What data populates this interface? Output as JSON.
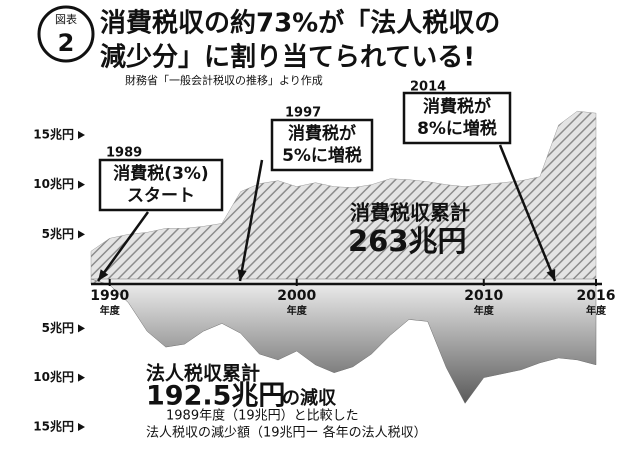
{
  "badge": {
    "label": "図表",
    "number": "2"
  },
  "chart_data": {
    "type": "mirror-area",
    "title_lines": [
      "消費税収の約73%が「法人税収の",
      "減少分」に割り当てられている!"
    ],
    "source": "財務省「一般会計税収の推移」より作成",
    "x": [
      1989,
      1990,
      1991,
      1992,
      1993,
      1994,
      1995,
      1996,
      1997,
      1998,
      1999,
      2000,
      2001,
      2002,
      2003,
      2004,
      2005,
      2006,
      2007,
      2008,
      2009,
      2010,
      2011,
      2012,
      2013,
      2014,
      2015,
      2016
    ],
    "xlim": [
      1989,
      2016
    ],
    "xticks": [
      1990,
      2000,
      2010,
      2016
    ],
    "xtick_unit": "年度",
    "ylim": [
      0,
      15
    ],
    "yticks": [
      {
        "value": 5,
        "label": "5兆円"
      },
      {
        "value": 10,
        "label": "10兆円"
      },
      {
        "value": 15,
        "label": "15兆円"
      }
    ],
    "y2lim": [
      0,
      15
    ],
    "y2ticks": [
      {
        "value": 5,
        "label": "5兆円"
      },
      {
        "value": 10,
        "label": "10兆円"
      },
      {
        "value": 15,
        "label": "15兆円"
      }
    ],
    "series": [
      {
        "name": "消費税収累計",
        "total_label": "263兆円",
        "color": "#9a9a9a",
        "axis": "y",
        "values": [
          3.3,
          4.6,
          5.0,
          5.2,
          5.6,
          5.6,
          5.8,
          6.1,
          9.3,
          10.1,
          10.4,
          9.8,
          10.2,
          9.8,
          9.7,
          10.0,
          10.6,
          10.5,
          10.3,
          10.0,
          9.8,
          10.0,
          10.2,
          10.4,
          10.8,
          16.0,
          17.4,
          17.2
        ]
      },
      {
        "name": "法人税収累計",
        "total_label": "192.5兆円",
        "total_suffix": "の減収",
        "notes": [
          "1989年度（19兆円）と比較した",
          "法人税収の減少額（19兆円ー 各年の法人税収）"
        ],
        "color": "#6e6e6e",
        "axis": "y2",
        "values": [
          0,
          0.6,
          2.4,
          5.3,
          6.9,
          6.6,
          5.3,
          4.5,
          5.5,
          7.6,
          8.2,
          7.3,
          8.7,
          9.5,
          8.9,
          7.6,
          5.7,
          4.1,
          4.3,
          9.0,
          12.6,
          10.0,
          9.6,
          9.2,
          8.5,
          8.0,
          8.2,
          8.7
        ]
      }
    ],
    "annotations": [
      {
        "year": "1989",
        "lines": [
          "消費税(3%)",
          "スタート"
        ]
      },
      {
        "year": "1997",
        "lines": [
          "消費税が",
          "5%に増税"
        ]
      },
      {
        "year": "2014",
        "lines": [
          "消費税が",
          "8%に増税"
        ]
      }
    ]
  }
}
